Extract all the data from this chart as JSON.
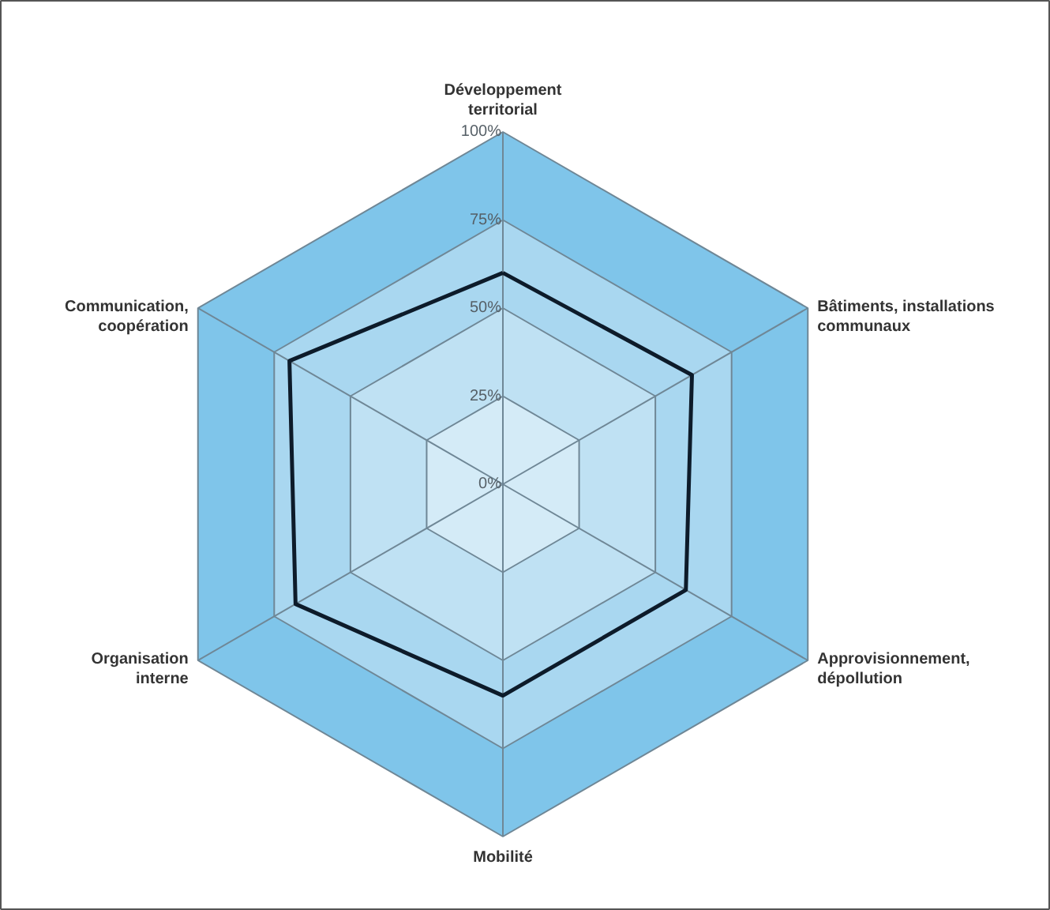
{
  "chart_data": {
    "type": "radar",
    "categories": [
      "Développement territorial",
      "Bâtiments, installations communaux",
      "Approvisionnement, dépollution",
      "Mobilité",
      "Organisation interne",
      "Communication, coopération"
    ],
    "series": [
      {
        "color": "#0d1b2a",
        "values": [
          60,
          62,
          60,
          60,
          68,
          70
        ]
      }
    ],
    "ylim": [
      0,
      100
    ],
    "yticks": [
      {
        "value": 0,
        "label": "0%"
      },
      {
        "value": 25,
        "label": "25%"
      },
      {
        "value": 50,
        "label": "50%"
      },
      {
        "value": 75,
        "label": "75%"
      },
      {
        "value": 100,
        "label": "100%"
      }
    ],
    "marker": "none",
    "line_style": "solid"
  }
}
